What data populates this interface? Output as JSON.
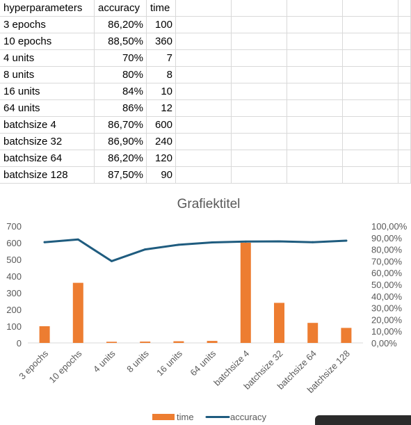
{
  "table": {
    "headers": [
      "hyperparameters",
      "accuracy",
      "time"
    ],
    "rows": [
      {
        "label": "3 epochs",
        "accuracy": "86,20%",
        "time": "100"
      },
      {
        "label": "10 epochs",
        "accuracy": "88,50%",
        "time": "360"
      },
      {
        "label": "4 units",
        "accuracy": "70%",
        "time": "7"
      },
      {
        "label": "8 units",
        "accuracy": "80%",
        "time": "8"
      },
      {
        "label": "16 units",
        "accuracy": "84%",
        "time": "10"
      },
      {
        "label": "64 units",
        "accuracy": "86%",
        "time": "12"
      },
      {
        "label": "batchsize 4",
        "accuracy": "86,70%",
        "time": "600"
      },
      {
        "label": "batchsize 32",
        "accuracy": "86,90%",
        "time": "240"
      },
      {
        "label": "batchsize 64",
        "accuracy": "86,20%",
        "time": "120"
      },
      {
        "label": "batchsize 128",
        "accuracy": "87,50%",
        "time": "90"
      }
    ]
  },
  "chart_data": {
    "type": "bar",
    "title": "Grafiektitel",
    "categories": [
      "3 epochs",
      "10 epochs",
      "4 units",
      "8 units",
      "16 units",
      "64 units",
      "batchsize 4",
      "batchsize 32",
      "batchsize 64",
      "batchsize 128"
    ],
    "series": [
      {
        "name": "time",
        "type": "bar",
        "axis": "left",
        "color": "#ed7d31",
        "values": [
          100,
          360,
          7,
          8,
          10,
          12,
          600,
          240,
          120,
          90
        ]
      },
      {
        "name": "accuracy",
        "type": "line",
        "axis": "right",
        "color": "#1f5c7f",
        "values": [
          0.862,
          0.885,
          0.7,
          0.8,
          0.84,
          0.86,
          0.867,
          0.869,
          0.862,
          0.875
        ]
      }
    ],
    "y_left": {
      "lim": [
        0,
        700
      ],
      "ticks": [
        "0",
        "100",
        "200",
        "300",
        "400",
        "500",
        "600",
        "700"
      ]
    },
    "y_right": {
      "lim": [
        0,
        1
      ],
      "ticks": [
        "0,00%",
        "10,00%",
        "20,00%",
        "30,00%",
        "40,00%",
        "50,00%",
        "60,00%",
        "70,00%",
        "80,00%",
        "90,00%",
        "100,00%"
      ]
    },
    "grid": false,
    "legend_position": "bottom",
    "colors": {
      "axis_text": "#595959",
      "title": "#595959",
      "axis_line": "#d9d9d9"
    }
  }
}
